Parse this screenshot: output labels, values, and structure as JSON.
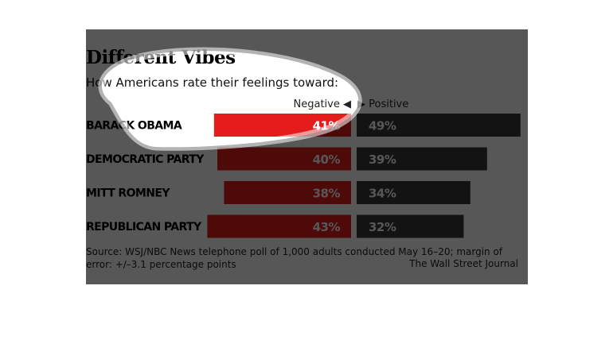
{
  "chart_data": {
    "type": "bar",
    "title": "Different Vibes",
    "subtitle": "How Americans rate their feelings toward:",
    "direction_labels": {
      "negative": "Negative ◀",
      "positive": "▶ Positive"
    },
    "categories": [
      "BARACK OBAMA",
      "DEMOCRATIC PARTY",
      "MITT ROMNEY",
      "REPUBLICAN PARTY"
    ],
    "series": [
      {
        "name": "Negative",
        "values": [
          41,
          40,
          38,
          43
        ],
        "labels": [
          "41%",
          "40%",
          "38%",
          "43%"
        ]
      },
      {
        "name": "Positive",
        "values": [
          49,
          39,
          34,
          32
        ],
        "labels": [
          "49%",
          "39%",
          "34%",
          "32%"
        ]
      }
    ],
    "colors": {
      "negative": "#e51c1c",
      "positive": "#3a3a3a"
    },
    "source": "Source: WSJ/NBC News telephone poll of 1,000 adults conducted May 16–20; margin of error: +/–3.1 percentage points",
    "credit": "The Wall Street Journal"
  }
}
